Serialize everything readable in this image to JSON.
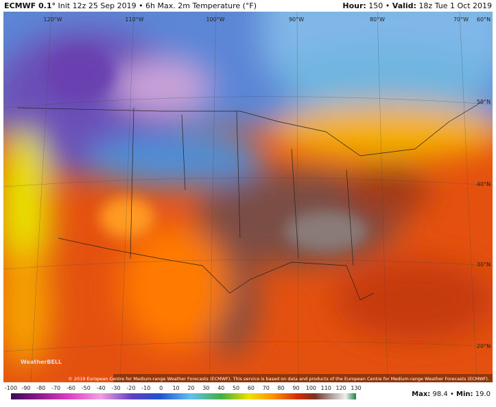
{
  "header": {
    "model": "ECMWF 0.1°",
    "description": "Init 12z 25 Sep 2019 • 6h Max. 2m Temperature (°F)",
    "hour_label": "Hour:",
    "hour": "150",
    "separator": "•",
    "valid_label": "Valid:",
    "valid": "18z Tue 1 Oct 2019"
  },
  "map": {
    "lon_labels": [
      "120°W",
      "110°W",
      "100°W",
      "90°W",
      "80°W",
      "70°W"
    ],
    "lat_labels": [
      "60°N",
      "50°N",
      "40°N",
      "30°N",
      "20°N"
    ],
    "watermark": "WeatherBELL",
    "copyright": "© 2019 European Centre for Medium-range Weather Forecasts (ECMWF). This service is based on data and products of the European Centre for Medium-range Weather Forecasts (ECMWF)."
  },
  "colorbar": {
    "ticks": [
      -100,
      -90,
      -80,
      -70,
      -60,
      -50,
      -40,
      -30,
      -20,
      -10,
      0,
      10,
      20,
      30,
      40,
      50,
      60,
      70,
      80,
      90,
      100,
      110,
      120,
      130
    ]
  },
  "footer": {
    "max_label": "Max:",
    "max": "98.4",
    "separator": "•",
    "min_label": "Min:",
    "min": "19.0"
  }
}
